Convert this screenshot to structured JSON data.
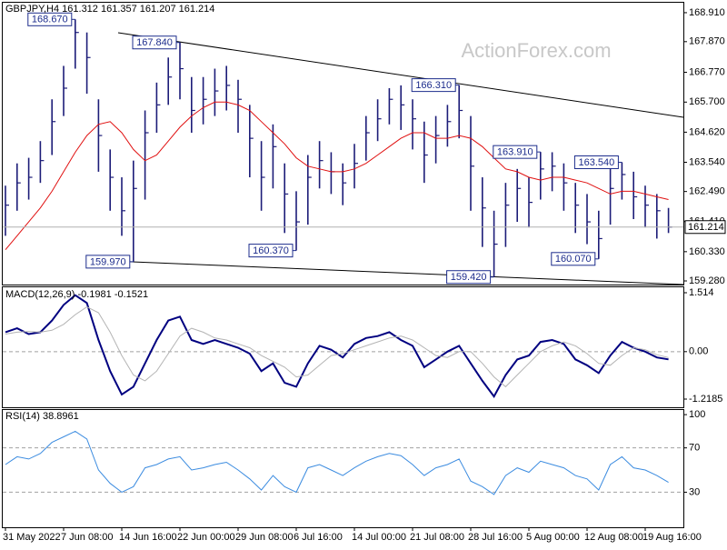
{
  "chart_data": [
    {
      "type": "ohlc",
      "title": "GBPJPY,H4 161.312 161.357 161.207 161.214",
      "watermark": "ActionForex.com",
      "color": "#1c1c78",
      "high": [
        162.7,
        163.5,
        163.7,
        164.3,
        165.8,
        167.0,
        168.67,
        168.2,
        165.8,
        164.0,
        163.0,
        163.6,
        165.4,
        166.4,
        167.3,
        167.84,
        166.6,
        166.6,
        166.9,
        167.0,
        166.5,
        165.6,
        164.3,
        164.9,
        163.5,
        162.5,
        163.8,
        164.3,
        163.9,
        163.5,
        164.2,
        165.2,
        165.8,
        166.2,
        166.3,
        165.8,
        165.0,
        165.2,
        165.6,
        166.31,
        165.2,
        163.0,
        161.8,
        162.8,
        163.3,
        163.0,
        163.91,
        163.9,
        163.5,
        162.8,
        162.4,
        161.8,
        163.3,
        163.54,
        163.2,
        162.7,
        162.4,
        161.9
      ],
      "low": [
        160.9,
        161.8,
        162.2,
        162.8,
        163.8,
        165.2,
        166.9,
        166.0,
        163.2,
        161.8,
        160.9,
        159.97,
        162.2,
        164.6,
        165.6,
        165.8,
        164.6,
        164.9,
        165.2,
        165.4,
        164.6,
        163.0,
        161.8,
        162.6,
        161.0,
        160.37,
        161.3,
        162.6,
        162.4,
        162.0,
        162.6,
        163.6,
        164.3,
        164.9,
        164.7,
        164.0,
        162.8,
        163.5,
        164.1,
        164.4,
        161.8,
        160.5,
        159.42,
        160.5,
        161.4,
        161.2,
        162.2,
        162.5,
        161.8,
        161.0,
        160.6,
        160.07,
        161.3,
        162.2,
        161.5,
        161.2,
        160.8,
        161.0
      ],
      "close": [
        162.0,
        162.8,
        163.0,
        163.6,
        165.0,
        166.2,
        168.2,
        167.3,
        164.5,
        163.0,
        161.8,
        162.6,
        164.6,
        165.6,
        166.6,
        166.9,
        165.4,
        165.8,
        166.1,
        166.3,
        165.8,
        164.4,
        163.0,
        164.1,
        162.4,
        161.4,
        163.0,
        163.6,
        163.2,
        162.8,
        163.5,
        164.6,
        165.1,
        165.8,
        165.6,
        165.1,
        163.8,
        164.5,
        165.0,
        165.4,
        163.4,
        161.9,
        160.6,
        162.0,
        162.6,
        162.1,
        163.3,
        163.4,
        162.8,
        162.0,
        161.4,
        160.8,
        162.6,
        163.1,
        162.3,
        162.0,
        161.8,
        161.214
      ],
      "series": [
        {
          "color": "#e01010",
          "values": [
            160.4,
            160.9,
            161.4,
            161.9,
            162.5,
            163.2,
            163.9,
            164.5,
            164.9,
            165.0,
            164.6,
            164.0,
            163.6,
            163.8,
            164.3,
            164.8,
            165.2,
            165.5,
            165.7,
            165.7,
            165.6,
            165.4,
            165.0,
            164.6,
            164.2,
            163.7,
            163.4,
            163.3,
            163.2,
            163.2,
            163.3,
            163.5,
            163.8,
            164.1,
            164.4,
            164.6,
            164.6,
            164.4,
            164.4,
            164.5,
            164.4,
            164.1,
            163.7,
            163.3,
            163.2,
            163.0,
            162.9,
            163.0,
            163.0,
            162.9,
            162.8,
            162.6,
            162.4,
            162.5,
            162.5,
            162.4,
            162.3,
            162.2
          ]
        }
      ],
      "annotations": [
        {
          "value": 168.67,
          "label": "168.670",
          "at": "high"
        },
        {
          "value": 167.84,
          "label": "167.840",
          "at": "high"
        },
        {
          "value": 166.31,
          "label": "166.310",
          "at": "high"
        },
        {
          "value": 163.91,
          "label": "163.910",
          "at": "high"
        },
        {
          "value": 163.54,
          "label": "163.540",
          "at": "high"
        },
        {
          "value": 159.97,
          "label": "159.970",
          "at": "low"
        },
        {
          "value": 160.37,
          "label": "160.370",
          "at": "low"
        },
        {
          "value": 159.42,
          "label": "159.420",
          "at": "low"
        },
        {
          "value": 160.07,
          "label": "160.070",
          "at": "low"
        }
      ],
      "ylim": [
        159.15,
        169.3
      ],
      "yticks": [
        {
          "value": 168.91,
          "label": "168.910"
        },
        {
          "value": 167.87,
          "label": "167.870"
        },
        {
          "value": 166.77,
          "label": "166.770"
        },
        {
          "value": 165.7,
          "label": "165.700"
        },
        {
          "value": 164.62,
          "label": "164.620"
        },
        {
          "value": 163.54,
          "label": "163.540"
        },
        {
          "value": 162.49,
          "label": "162.490"
        },
        {
          "value": 161.41,
          "label": "161.410"
        },
        {
          "value": 160.33,
          "label": "160.330"
        },
        {
          "value": 159.28,
          "label": "159.280"
        }
      ]
    },
    {
      "type": "line",
      "title": "MACD(12,26,9) -0.1981 -0.1521",
      "series": [
        {
          "color": "#000080",
          "values": [
            0.5,
            0.6,
            0.45,
            0.5,
            0.8,
            1.2,
            1.45,
            1.25,
            0.3,
            -0.5,
            -1.1,
            -0.9,
            -0.3,
            0.3,
            0.8,
            0.9,
            0.3,
            0.2,
            0.3,
            0.2,
            0.1,
            -0.05,
            -0.5,
            -0.3,
            -0.8,
            -0.9,
            -0.3,
            0.15,
            0.05,
            -0.15,
            0.2,
            0.35,
            0.4,
            0.5,
            0.3,
            0.15,
            -0.4,
            -0.2,
            0.0,
            0.15,
            -0.3,
            -0.75,
            -1.15,
            -0.6,
            -0.2,
            -0.1,
            0.25,
            0.3,
            0.2,
            -0.2,
            -0.35,
            -0.55,
            -0.1,
            0.25,
            0.1,
            0.0,
            -0.15,
            -0.1981
          ]
        },
        {
          "color": "#b4b4b4",
          "values": [
            0.45,
            0.5,
            0.52,
            0.5,
            0.55,
            0.7,
            0.95,
            1.15,
            1.0,
            0.5,
            -0.1,
            -0.6,
            -0.75,
            -0.5,
            -0.05,
            0.4,
            0.6,
            0.5,
            0.35,
            0.3,
            0.2,
            0.1,
            -0.1,
            -0.25,
            -0.4,
            -0.65,
            -0.6,
            -0.35,
            -0.1,
            -0.05,
            0.05,
            0.15,
            0.25,
            0.35,
            0.4,
            0.3,
            0.1,
            -0.1,
            -0.15,
            0.0,
            0.0,
            -0.3,
            -0.65,
            -0.9,
            -0.6,
            -0.3,
            0.0,
            0.15,
            0.25,
            0.15,
            -0.05,
            -0.3,
            -0.35,
            -0.1,
            0.1,
            0.05,
            -0.08,
            -0.1521
          ]
        }
      ],
      "ylim": [
        -1.429,
        1.654
      ],
      "yticks": [
        1.514,
        {
          "value": 0,
          "label": "0.00"
        },
        -1.2185
      ],
      "levels": [
        0
      ]
    },
    {
      "type": "line",
      "title": "RSI(14) 38.8961",
      "series": [
        {
          "color": "#3c8ce0",
          "values": [
            55,
            62,
            60,
            65,
            75,
            80,
            85,
            78,
            50,
            38,
            30,
            35,
            52,
            55,
            60,
            62,
            50,
            52,
            55,
            57,
            50,
            42,
            32,
            45,
            35,
            30,
            52,
            55,
            50,
            45,
            52,
            58,
            62,
            65,
            63,
            55,
            45,
            52,
            55,
            60,
            40,
            35,
            28,
            45,
            52,
            48,
            58,
            55,
            52,
            45,
            42,
            32,
            55,
            62,
            52,
            50,
            45,
            38.8961
          ]
        }
      ],
      "ylim": [
        0,
        105
      ],
      "yticks": [
        100,
        70,
        30
      ],
      "levels": [
        70,
        30
      ],
      "categories": [
        "31 May 2022",
        null,
        null,
        null,
        null,
        "7 Jun 08:00",
        null,
        null,
        null,
        null,
        "14 Jun 16:00",
        null,
        null,
        null,
        null,
        "22 Jun 00:00",
        null,
        null,
        null,
        null,
        "29 Jun 08:00",
        null,
        null,
        null,
        null,
        "6 Jul 16:00",
        null,
        null,
        null,
        null,
        "14 Jul 00:00",
        null,
        null,
        null,
        null,
        "21 Jul 08:00",
        null,
        null,
        null,
        null,
        "28 Jul 16:00",
        null,
        null,
        null,
        null,
        "5 Aug 00:00",
        null,
        null,
        null,
        null,
        "12 Aug 08:00",
        null,
        null,
        null,
        null,
        "19 Aug 16:00",
        null,
        null
      ]
    }
  ]
}
